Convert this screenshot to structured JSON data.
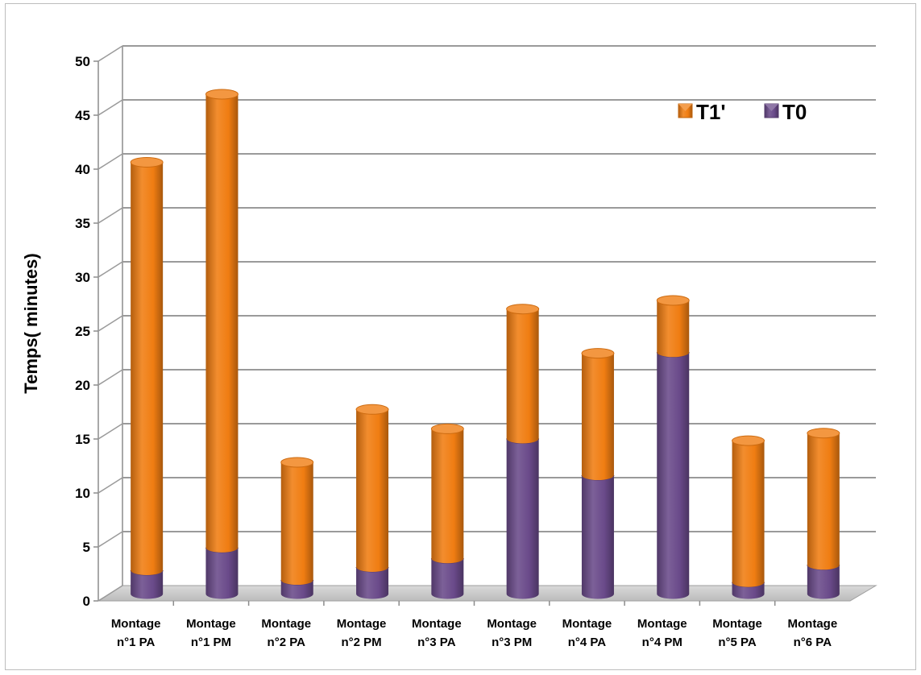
{
  "chart_data": {
    "type": "bar",
    "stacked": true,
    "three_d": true,
    "categories": [
      [
        "Montage",
        "n°1 PA"
      ],
      [
        "Montage",
        "n°1 PM"
      ],
      [
        "Montage",
        "n°2 PA"
      ],
      [
        "Montage",
        "n°2 PM"
      ],
      [
        "Montage",
        "n°3 PA"
      ],
      [
        "Montage",
        "n°3 PM"
      ],
      [
        "Montage",
        "n°4 PA"
      ],
      [
        "Montage",
        "n°4 PM"
      ],
      [
        "Montage",
        "n°5 PA"
      ],
      [
        "Montage",
        "n°6 PA"
      ]
    ],
    "series": [
      {
        "name": "T0",
        "color": "#6a4a8a",
        "values": [
          2.2,
          4.3,
          1.3,
          2.5,
          3.3,
          14.4,
          11.0,
          22.4,
          1.1,
          2.7
        ]
      },
      {
        "name": "T1'",
        "color": "#f07d12",
        "values": [
          37.8,
          42.0,
          10.9,
          14.6,
          12.0,
          12.0,
          11.3,
          4.8,
          13.1,
          12.2
        ]
      }
    ],
    "legend_order": [
      "T1'",
      "T0"
    ],
    "legend_position": "top-right",
    "ylabel": "Temps( minutes)",
    "xlabel": "",
    "ylim": [
      0,
      50
    ],
    "yticks": [
      0,
      5,
      10,
      15,
      20,
      25,
      30,
      35,
      40,
      45,
      50
    ],
    "grid": true
  }
}
